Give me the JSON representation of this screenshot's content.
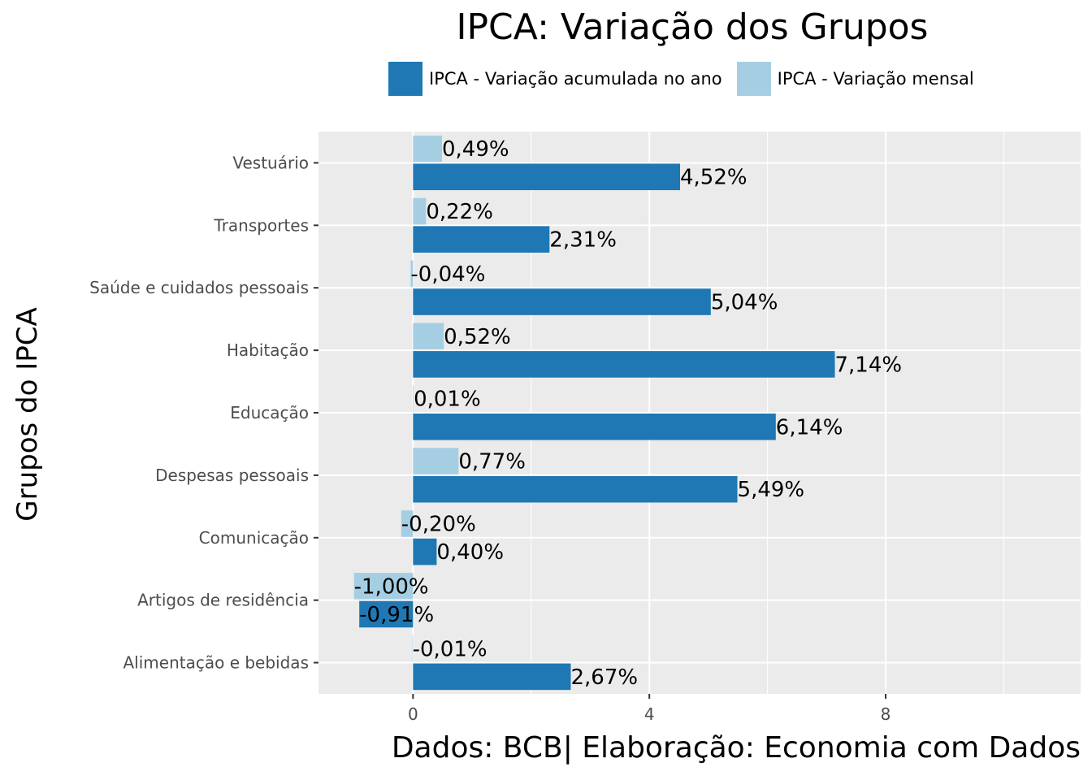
{
  "chart_data": {
    "type": "bar",
    "orientation": "horizontal",
    "title": "IPCA: Variação dos Grupos",
    "xlabel": "Dados: BCB| Elaboração: Economia com Dados",
    "ylabel": "Grupos do IPCA",
    "xlim": [
      -1.6,
      11.3
    ],
    "xticks": [
      0,
      4,
      8
    ],
    "xtick_labels": [
      "0",
      "4",
      "8"
    ],
    "grid": true,
    "legend_position": "top",
    "categories": [
      "Vestuário",
      "Transportes",
      "Saúde e cuidados pessoais",
      "Habitação",
      "Educação",
      "Despesas pessoais",
      "Comunicação",
      "Artigos de residência",
      "Alimentação e bebidas"
    ],
    "series": [
      {
        "name": "IPCA - Variação mensal",
        "color": "#a6cee3",
        "values": [
          0.49,
          0.22,
          -0.04,
          0.52,
          0.01,
          0.77,
          -0.2,
          -1.0,
          -0.01
        ],
        "labels": [
          "0,49%",
          "0,22%",
          "-0,04%",
          "0,52%",
          "0,01%",
          "0,77%",
          "-0,20%",
          "-1,00%",
          "-0,01%"
        ]
      },
      {
        "name": "IPCA - Variação acumulada no ano",
        "color": "#1f78b4",
        "values": [
          4.52,
          2.31,
          5.04,
          7.14,
          6.14,
          5.49,
          0.4,
          -0.91,
          2.67
        ],
        "labels": [
          "4,52%",
          "2,31%",
          "5,04%",
          "7,14%",
          "6,14%",
          "5,49%",
          "0,40%",
          "-0,91%",
          "2,67%"
        ]
      }
    ]
  },
  "legend": {
    "acumulada_label": "IPCA - Variação acumulada no ano",
    "mensal_label": "IPCA - Variação mensal",
    "acumulada_color": "#1f78b4",
    "mensal_color": "#a6cee3"
  },
  "colors": {
    "panel_background": "#ebebeb",
    "grid": "#ffffff",
    "axis_text": "#4d4d4d"
  }
}
